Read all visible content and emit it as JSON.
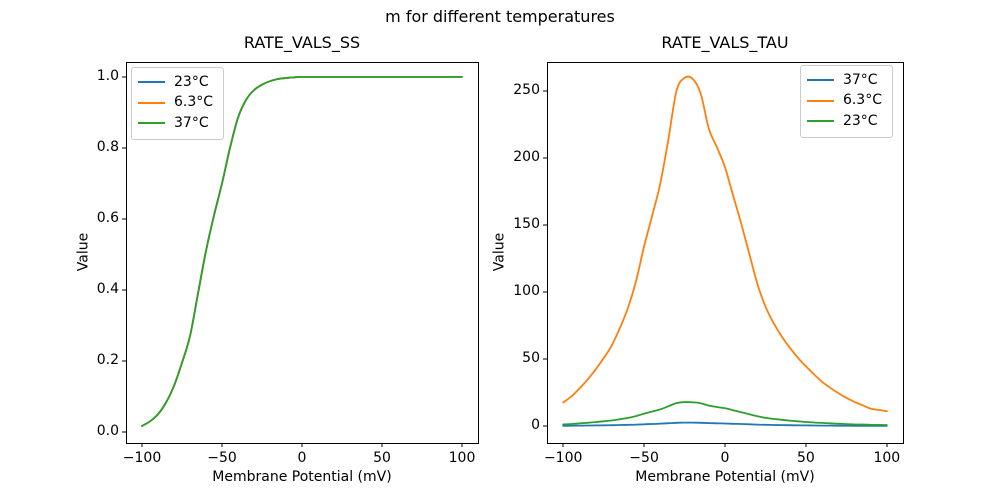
{
  "figure": {
    "title": "m for different temperatures",
    "background_color": "#ffffff",
    "text_color": "#000000",
    "spine_color": "#000000",
    "legend_border_color": "#cccccc"
  },
  "chart_data": [
    {
      "type": "line",
      "title": "RATE_VALS_SS",
      "xlabel": "Membrane Potential (mV)",
      "ylabel": "Value",
      "grid": false,
      "legend_position": "upper left",
      "xlim": [
        -110,
        110
      ],
      "ylim": [
        -0.031,
        1.042
      ],
      "xticks": [
        -100,
        -50,
        0,
        50,
        100
      ],
      "xtick_labels": [
        "−100",
        "−50",
        "0",
        "50",
        "100"
      ],
      "yticks": [
        0.0,
        0.2,
        0.4,
        0.6,
        0.8,
        1.0
      ],
      "ytick_labels": [
        "0.0",
        "0.2",
        "0.4",
        "0.6",
        "0.8",
        "1.0"
      ],
      "x": [
        -100,
        -95,
        -90,
        -85,
        -80,
        -75,
        -70,
        -65,
        -60,
        -55,
        -50,
        -45,
        -40,
        -35,
        -30,
        -25,
        -20,
        -15,
        -10,
        -5,
        0,
        5,
        10,
        15,
        20,
        25,
        30,
        35,
        40,
        45,
        50,
        55,
        60,
        65,
        70,
        75,
        80,
        85,
        90,
        95,
        100
      ],
      "note": "all three temperature curves overlap exactly; green (37°C) drawn last is visible",
      "series": [
        {
          "name": "23°C",
          "color": "#1f77b4",
          "values": [
            0.017,
            0.03,
            0.05,
            0.083,
            0.13,
            0.195,
            0.27,
            0.39,
            0.51,
            0.61,
            0.7,
            0.8,
            0.885,
            0.935,
            0.963,
            0.978,
            0.988,
            0.994,
            0.997,
            0.999,
            1,
            1,
            1,
            1,
            1,
            1,
            1,
            1,
            1,
            1,
            1,
            1,
            1,
            1,
            1,
            1,
            1,
            1,
            1,
            1,
            1
          ]
        },
        {
          "name": "6.3°C",
          "color": "#ff7f0e",
          "values": [
            0.017,
            0.03,
            0.05,
            0.083,
            0.13,
            0.195,
            0.27,
            0.39,
            0.51,
            0.61,
            0.7,
            0.8,
            0.885,
            0.935,
            0.963,
            0.978,
            0.988,
            0.994,
            0.997,
            0.999,
            1,
            1,
            1,
            1,
            1,
            1,
            1,
            1,
            1,
            1,
            1,
            1,
            1,
            1,
            1,
            1,
            1,
            1,
            1,
            1,
            1
          ]
        },
        {
          "name": "37°C",
          "color": "#2ca02c",
          "values": [
            0.017,
            0.03,
            0.05,
            0.083,
            0.13,
            0.195,
            0.27,
            0.39,
            0.51,
            0.61,
            0.7,
            0.8,
            0.885,
            0.935,
            0.963,
            0.978,
            0.988,
            0.994,
            0.997,
            0.999,
            1,
            1,
            1,
            1,
            1,
            1,
            1,
            1,
            1,
            1,
            1,
            1,
            1,
            1,
            1,
            1,
            1,
            1,
            1,
            1,
            1
          ]
        }
      ]
    },
    {
      "type": "line",
      "title": "RATE_VALS_TAU",
      "xlabel": "Membrane Potential (mV)",
      "ylabel": "Value",
      "grid": false,
      "legend_position": "upper right",
      "xlim": [
        -110,
        110
      ],
      "ylim": [
        -12.7,
        271.6
      ],
      "xticks": [
        -100,
        -50,
        0,
        50,
        100
      ],
      "xtick_labels": [
        "−100",
        "−50",
        "0",
        "50",
        "100"
      ],
      "yticks": [
        0,
        50,
        100,
        150,
        200,
        250
      ],
      "ytick_labels": [
        "0",
        "50",
        "100",
        "150",
        "200",
        "250"
      ],
      "x": [
        -100,
        -95,
        -90,
        -85,
        -80,
        -75,
        -70,
        -65,
        -60,
        -55,
        -50,
        -45,
        -40,
        -35,
        -30,
        -25,
        -20,
        -15,
        -10,
        -5,
        0,
        5,
        10,
        15,
        20,
        25,
        30,
        35,
        40,
        45,
        50,
        55,
        60,
        65,
        70,
        75,
        80,
        85,
        90,
        95,
        100
      ],
      "note": "peak of 6.3°C curve ≈ 260 at ≈ −22 mV",
      "series": [
        {
          "name": "37°C",
          "color": "#1f77b4",
          "values": [
            0.17,
            0.21,
            0.27,
            0.33,
            0.4,
            0.49,
            0.58,
            0.7,
            0.85,
            1.04,
            1.29,
            1.51,
            1.74,
            2.06,
            2.4,
            2.5,
            2.49,
            2.38,
            2.13,
            2.0,
            1.86,
            1.65,
            1.45,
            1.24,
            1.02,
            0.86,
            0.74,
            0.64,
            0.56,
            0.49,
            0.43,
            0.37,
            0.32,
            0.27,
            0.24,
            0.2,
            0.17,
            0.15,
            0.13,
            0.12,
            0.11
          ]
        },
        {
          "name": "6.3°C",
          "color": "#ff7f0e",
          "values": [
            17.5,
            22,
            28,
            34.5,
            42,
            50.5,
            60,
            73,
            88,
            108,
            134,
            157,
            181,
            214,
            250,
            259.7,
            259.1,
            248,
            222,
            208,
            193,
            172,
            151,
            128.5,
            106,
            89,
            77,
            67,
            58.5,
            51,
            44.5,
            38.5,
            33,
            28.5,
            24.5,
            21,
            18,
            15.5,
            13,
            12,
            11
          ]
        },
        {
          "name": "23°C",
          "color": "#2ca02c",
          "values": [
            1.2,
            1.5,
            1.9,
            2.4,
            2.9,
            3.5,
            4.1,
            5.0,
            6.0,
            7.4,
            9.2,
            10.8,
            12.4,
            14.7,
            17.1,
            17.8,
            17.7,
            17.0,
            15.2,
            14.2,
            13.2,
            11.8,
            10.3,
            8.8,
            7.3,
            6.1,
            5.3,
            4.6,
            4.0,
            3.5,
            3.0,
            2.6,
            2.3,
            2.0,
            1.7,
            1.4,
            1.2,
            1.1,
            0.9,
            0.8,
            0.75
          ]
        }
      ]
    }
  ]
}
